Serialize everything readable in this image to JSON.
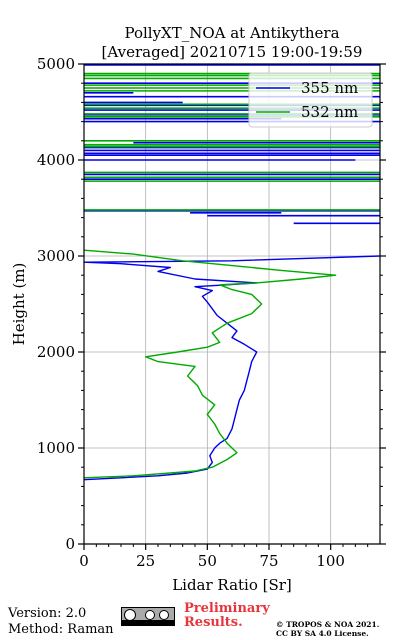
{
  "chart_data": {
    "type": "line",
    "title": "PollyXT_NOA at Antikythera",
    "subtitle": "[Averaged] 20210715 19:00-19:59",
    "xlabel": "Lidar Ratio [Sr]",
    "ylabel": "Height (m)",
    "xlim": [
      0,
      120
    ],
    "ylim": [
      0,
      5000
    ],
    "xticks": [
      "0",
      "25",
      "50",
      "75",
      "100"
    ],
    "yticks": [
      "0",
      "1000",
      "2000",
      "3000",
      "4000",
      "5000"
    ],
    "grid": true,
    "legend_position": "top-right",
    "series": [
      {
        "name": "355 nm",
        "color": "#0000ee",
        "points": [
          [
            0,
            670
          ],
          [
            15,
            690
          ],
          [
            30,
            710
          ],
          [
            42,
            740
          ],
          [
            50,
            780
          ],
          [
            52,
            850
          ],
          [
            51,
            920
          ],
          [
            53,
            1000
          ],
          [
            55,
            1050
          ],
          [
            58,
            1100
          ],
          [
            60,
            1200
          ],
          [
            61,
            1300
          ],
          [
            62,
            1400
          ],
          [
            63,
            1500
          ],
          [
            65,
            1600
          ],
          [
            66,
            1700
          ],
          [
            67,
            1800
          ],
          [
            68,
            1900
          ],
          [
            70,
            2000
          ],
          [
            65,
            2080
          ],
          [
            60,
            2150
          ],
          [
            62,
            2220
          ],
          [
            58,
            2300
          ],
          [
            54,
            2380
          ],
          [
            52,
            2450
          ],
          [
            50,
            2520
          ],
          [
            48,
            2580
          ],
          [
            52,
            2640
          ],
          [
            45,
            2680
          ],
          [
            58,
            2700
          ],
          [
            70,
            2720
          ],
          [
            45,
            2760
          ],
          [
            30,
            2840
          ],
          [
            35,
            2880
          ],
          [
            15,
            2920
          ],
          [
            0,
            2935
          ],
          [
            60,
            2950
          ],
          [
            120,
            3000
          ]
        ]
      },
      {
        "name": "532 nm",
        "color": "#00aa00",
        "points": [
          [
            0,
            690
          ],
          [
            20,
            710
          ],
          [
            35,
            740
          ],
          [
            45,
            760
          ],
          [
            52,
            800
          ],
          [
            58,
            880
          ],
          [
            62,
            950
          ],
          [
            58,
            1050
          ],
          [
            55,
            1150
          ],
          [
            53,
            1250
          ],
          [
            50,
            1350
          ],
          [
            53,
            1450
          ],
          [
            48,
            1550
          ],
          [
            46,
            1650
          ],
          [
            42,
            1750
          ],
          [
            45,
            1850
          ],
          [
            30,
            1900
          ],
          [
            25,
            1950
          ],
          [
            38,
            2000
          ],
          [
            50,
            2050
          ],
          [
            55,
            2100
          ],
          [
            52,
            2200
          ],
          [
            58,
            2300
          ],
          [
            68,
            2400
          ],
          [
            72,
            2500
          ],
          [
            68,
            2600
          ],
          [
            60,
            2650
          ],
          [
            55,
            2700
          ],
          [
            70,
            2720
          ],
          [
            88,
            2760
          ],
          [
            102,
            2800
          ],
          [
            80,
            2850
          ],
          [
            60,
            2900
          ],
          [
            40,
            2950
          ],
          [
            20,
            3020
          ],
          [
            0,
            3060
          ]
        ]
      }
    ],
    "noise_bands": [
      {
        "series": "355 nm",
        "heights": [
          3340,
          3420,
          3450,
          3470,
          3800,
          3850,
          4000,
          4050,
          4070,
          4100,
          4130,
          4180,
          4400,
          4430,
          4470,
          4520,
          4570,
          4600,
          4660,
          4700,
          4800,
          4990
        ],
        "x_from": [
          85,
          50,
          43,
          0,
          0,
          0,
          0,
          0,
          0,
          0,
          0,
          20,
          0,
          0,
          0,
          0,
          0,
          0,
          0,
          0,
          0,
          0
        ],
        "x_to": [
          120,
          120,
          80,
          120,
          120,
          120,
          110,
          120,
          120,
          120,
          120,
          120,
          120,
          80,
          120,
          120,
          120,
          40,
          120,
          20,
          120,
          120
        ]
      },
      {
        "series": "532 nm",
        "heights": [
          3480,
          3780,
          3820,
          3870,
          4140,
          4160,
          4200,
          4450,
          4480,
          4540,
          4580,
          4720,
          4750,
          4780,
          4850,
          4880,
          4900
        ],
        "x_from": [
          0,
          0,
          0,
          0,
          0,
          0,
          0,
          0,
          0,
          0,
          0,
          0,
          0,
          0,
          0,
          0,
          0
        ],
        "x_to": [
          120,
          120,
          120,
          120,
          120,
          120,
          120,
          120,
          120,
          120,
          120,
          120,
          120,
          120,
          120,
          120,
          120
        ]
      }
    ]
  },
  "footer": {
    "version": "Version: 2.0",
    "method": "Method: Raman",
    "prelim_line1": "Preliminary",
    "prelim_line2": "Results.",
    "copyright_line1": "© TROPOS & NOA 2021.",
    "copyright_line2": "CC BY SA 4.0 License."
  },
  "badge": {
    "icons": [
      "cc-icon",
      "by-icon",
      "sa-icon"
    ],
    "label": "BY SA"
  }
}
